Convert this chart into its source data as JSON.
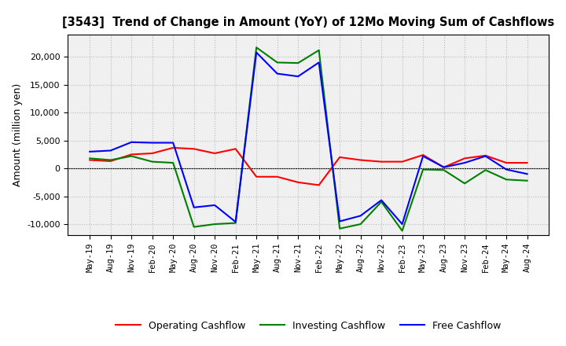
{
  "title": "[3543]  Trend of Change in Amount (YoY) of 12Mo Moving Sum of Cashflows",
  "ylabel": "Amount (million yen)",
  "x_labels": [
    "May-19",
    "Aug-19",
    "Nov-19",
    "Feb-20",
    "May-20",
    "Aug-20",
    "Nov-20",
    "Feb-21",
    "May-21",
    "Aug-21",
    "Nov-21",
    "Feb-22",
    "May-22",
    "Aug-22",
    "Nov-22",
    "Feb-23",
    "May-23",
    "Aug-23",
    "Nov-23",
    "Feb-24",
    "May-24",
    "Aug-24"
  ],
  "operating": [
    1500,
    1300,
    2500,
    2700,
    3700,
    3500,
    2700,
    3500,
    -1500,
    -1500,
    -2500,
    -3000,
    2000,
    1500,
    1200,
    1200,
    2400,
    200,
    1800,
    2300,
    1000,
    1000
  ],
  "investing": [
    1800,
    1500,
    2200,
    1200,
    1000,
    -10500,
    -10000,
    -9800,
    21700,
    19000,
    18900,
    21200,
    -10800,
    -10000,
    -6000,
    -11200,
    -200,
    -300,
    -2700,
    -300,
    -2000,
    -2200
  ],
  "free": [
    3000,
    3200,
    4700,
    4600,
    4600,
    -7000,
    -6600,
    -9600,
    20800,
    17000,
    16500,
    19000,
    -9500,
    -8500,
    -5700,
    -10000,
    2200,
    200,
    1000,
    2200,
    -200,
    -1000
  ],
  "op_color": "#ff0000",
  "inv_color": "#008000",
  "free_color": "#0000ff",
  "ylim": [
    -12000,
    24000
  ],
  "yticks": [
    -10000,
    -5000,
    0,
    5000,
    10000,
    15000,
    20000
  ],
  "plot_bg_color": "#f0f0f0",
  "fig_bg_color": "#ffffff",
  "grid_color": "#bbbbbb",
  "legend_labels": [
    "Operating Cashflow",
    "Investing Cashflow",
    "Free Cashflow"
  ]
}
